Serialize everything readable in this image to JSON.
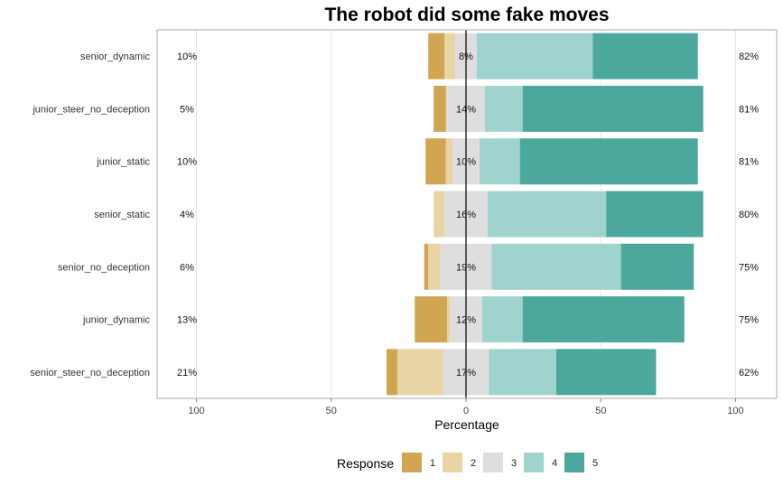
{
  "chart_data": {
    "type": "bar",
    "title": "The robot did some fake moves",
    "xlabel": "Percentage",
    "ylabel": "",
    "xlim": [
      -100,
      100
    ],
    "x_ticks": [
      -100,
      -50,
      0,
      50,
      100
    ],
    "x_tick_labels": [
      "100",
      "50",
      "0",
      "50",
      "100"
    ],
    "grid": true,
    "legend_position": "bottom",
    "legend_title": "Response",
    "colors": {
      "1": "#D0A652",
      "2": "#E8D4A4",
      "3": "#DEDEDE",
      "4": "#A0D3CD",
      "5": "#4CA89C"
    },
    "levels": [
      "1",
      "2",
      "3",
      "4",
      "5"
    ],
    "categories": [
      "senior_dynamic",
      "junior_steer_no_deception",
      "junior_static",
      "senior_static",
      "senior_no_deception",
      "junior_dynamic",
      "senior_steer_no_deception"
    ],
    "series": [
      {
        "name": "1",
        "values": [
          6,
          4.5,
          7.5,
          0,
          1.5,
          12,
          4
        ]
      },
      {
        "name": "2",
        "values": [
          4,
          0.5,
          2.5,
          4,
          4.5,
          1,
          17
        ]
      },
      {
        "name": "3",
        "values": [
          8,
          14,
          10,
          16,
          19,
          12,
          17
        ]
      },
      {
        "name": "4",
        "values": [
          43,
          14,
          15,
          44,
          48,
          15,
          25
        ]
      },
      {
        "name": "5",
        "values": [
          39,
          67,
          66,
          36,
          27,
          60,
          37
        ]
      }
    ],
    "low_pct_labels": [
      "10%",
      "5%",
      "10%",
      "4%",
      "6%",
      "13%",
      "21%"
    ],
    "neutral_pct_labels": [
      "8%",
      "14%",
      "10%",
      "16%",
      "19%",
      "12%",
      "17%"
    ],
    "high_pct_labels": [
      "82%",
      "81%",
      "81%",
      "80%",
      "75%",
      "75%",
      "62%"
    ]
  }
}
